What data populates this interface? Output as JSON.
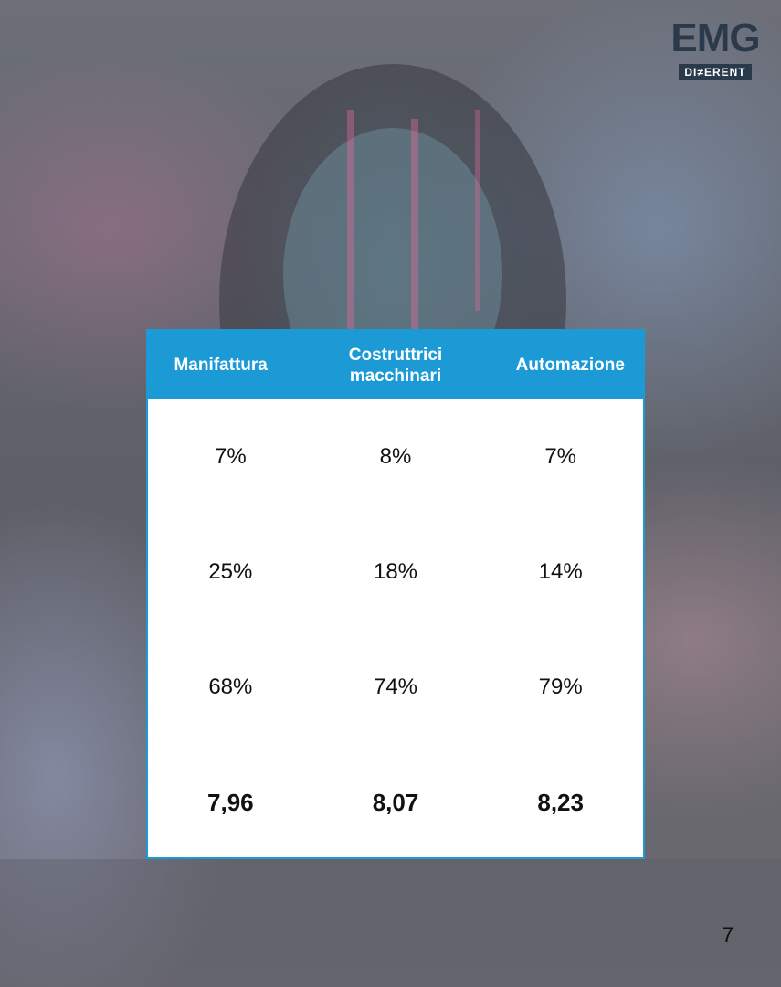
{
  "logo": {
    "name": "EMG",
    "tagline": "DI≠ERENT"
  },
  "table": {
    "header": [
      "Manifattura",
      "Costruttrici macchinari",
      "Automazione"
    ],
    "rows": [
      [
        "7%",
        "8%",
        "7%"
      ],
      [
        "25%",
        "18%",
        "14%"
      ],
      [
        "68%",
        "74%",
        "79%"
      ],
      [
        "7,96",
        "8,07",
        "8,23"
      ]
    ]
  },
  "page_number": "7"
}
